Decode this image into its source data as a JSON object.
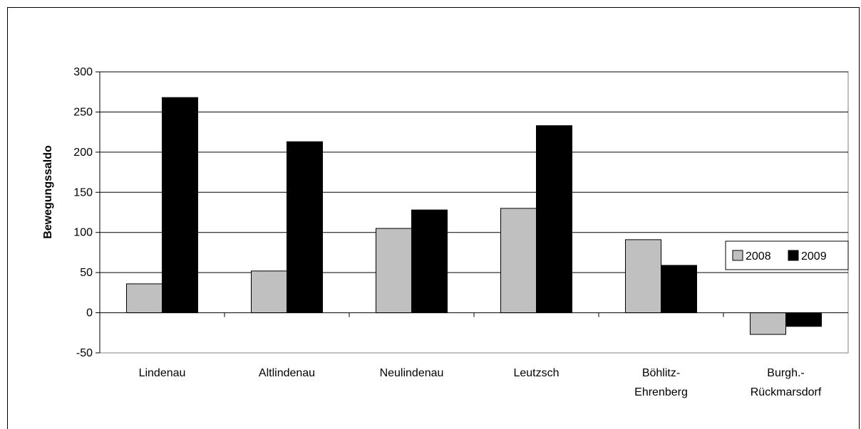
{
  "chart_data": {
    "type": "bar",
    "title": "",
    "xlabel": "",
    "ylabel": "Bewegungssaldo",
    "categories": [
      [
        "Lindenau"
      ],
      [
        "Altlindenau"
      ],
      [
        "Neulindenau"
      ],
      [
        "Leutzsch"
      ],
      [
        "Böhlitz-",
        "Ehrenberg"
      ],
      [
        "Burgh.-",
        "Rückmarsdorf"
      ]
    ],
    "series": [
      {
        "name": "2008",
        "color": "#c0c0c0",
        "values": [
          36,
          52,
          105,
          130,
          91,
          -27
        ]
      },
      {
        "name": "2009",
        "color": "#000000",
        "values": [
          268,
          213,
          128,
          233,
          59,
          -17
        ]
      }
    ],
    "ylim": [
      -50,
      300
    ],
    "yticks": [
      -50,
      0,
      50,
      100,
      150,
      200,
      250,
      300
    ],
    "grid": true,
    "legend": "right"
  }
}
